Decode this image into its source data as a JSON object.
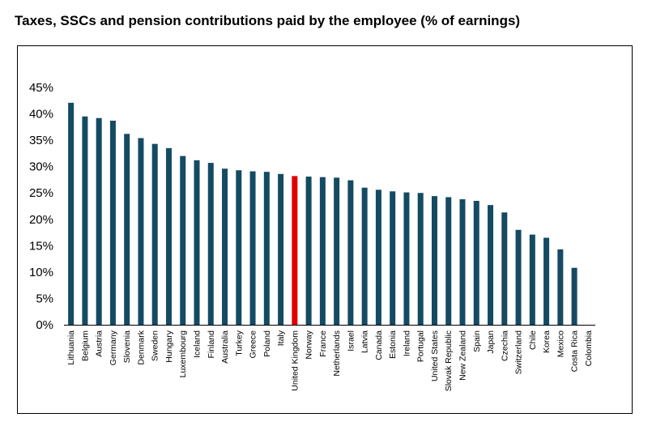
{
  "title": "Taxes, SSCs and pension contributions paid by the employee (% of earnings)",
  "colors": {
    "bar": "#144b63",
    "highlight": "#e00000",
    "axis": "#000000"
  },
  "chart_data": {
    "type": "bar",
    "title": "Taxes, SSCs and pension contributions paid by the employee (% of earnings)",
    "xlabel": "",
    "ylabel": "",
    "ylim": [
      0,
      45
    ],
    "y_ticks": [
      0,
      5,
      10,
      15,
      20,
      25,
      30,
      35,
      40,
      45
    ],
    "y_tick_format": "percent",
    "grid": false,
    "legend": "none",
    "highlight": "United Kingdom",
    "categories": [
      "Lithuania",
      "Belgium",
      "Austria",
      "Germany",
      "Slovenia",
      "Denmark",
      "Sweden",
      "Hungary",
      "Luxembourg",
      "Iceland",
      "Finland",
      "Australia",
      "Turkey",
      "Greece",
      "Poland",
      "Italy",
      "United Kingdom",
      "Norway",
      "France",
      "Netherlands",
      "Israel",
      "Latvia",
      "Canada",
      "Estonia",
      "Ireland",
      "Portugal",
      "United States",
      "Slovak Republic",
      "New Zealand",
      "Spain",
      "Japan",
      "Czechia",
      "Switzerland",
      "Chile",
      "Korea",
      "Mexico",
      "Costa Rica",
      "Colombia"
    ],
    "values": [
      42.1,
      39.5,
      39.2,
      38.7,
      36.2,
      35.4,
      34.3,
      33.5,
      32.0,
      31.2,
      30.7,
      29.6,
      29.3,
      29.1,
      29.0,
      28.6,
      28.2,
      28.1,
      28.0,
      27.9,
      27.4,
      26.0,
      25.6,
      25.3,
      25.1,
      25.0,
      24.4,
      24.2,
      23.8,
      23.5,
      22.7,
      21.3,
      18.0,
      17.1,
      16.5,
      14.3,
      10.8,
      0.0
    ]
  }
}
